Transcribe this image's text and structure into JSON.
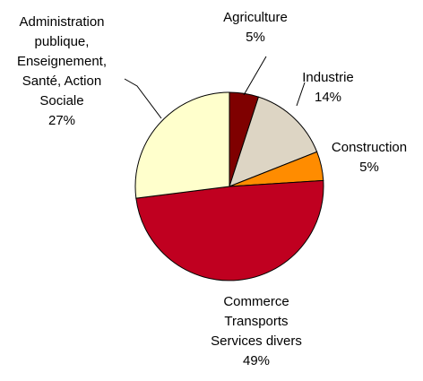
{
  "chart_data": {
    "type": "pie",
    "slices": [
      {
        "lines": [
          "Agriculture",
          "5%"
        ],
        "value": 5,
        "color": "#7F0000"
      },
      {
        "lines": [
          "Industrie",
          "14%"
        ],
        "value": 14,
        "color": "#DDD5C4"
      },
      {
        "lines": [
          "Construction",
          "5%"
        ],
        "value": 5,
        "color": "#FF8C00"
      },
      {
        "lines": [
          "Commerce",
          "Transports",
          "Services divers",
          "49%"
        ],
        "value": 49,
        "color": "#C00020"
      },
      {
        "lines": [
          "Administration",
          "publique,",
          "Enseignement,",
          "Santé, Action",
          "Sociale",
          "27%"
        ],
        "value": 27,
        "color": "#FFFFCC"
      }
    ],
    "legend": "none"
  }
}
